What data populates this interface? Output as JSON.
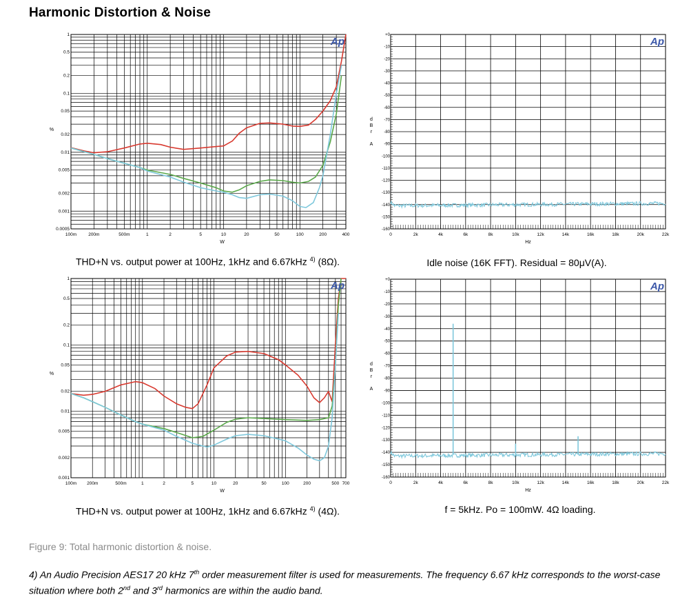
{
  "header": {
    "title": "Harmonic Distortion & Noise"
  },
  "colors": {
    "red": "#d8392f",
    "green": "#5aa84a",
    "cyan": "#7ec8dc",
    "grid": "#000000",
    "logo": "#3b57a8"
  },
  "logo_text": "Ap",
  "charts": {
    "thd8": {
      "caption_main": "THD+N vs. output power at 100Hz, 1kHz and 6.67kHz",
      "caption_sup": "4)",
      "caption_end": " (8Ω).",
      "ylabel": "%",
      "xlabel": "W"
    },
    "idle": {
      "caption": "Idle noise (16K FFT). Residual = 80μV(A).",
      "ylabel": [
        "d",
        "B",
        "r",
        "",
        "A"
      ],
      "xlabel": "Hz"
    },
    "thd4": {
      "caption_main": "THD+N vs. output power at 100Hz, 1kHz and 6.67kHz",
      "caption_sup": "4)",
      "caption_end": " (4Ω).",
      "ylabel": "%",
      "xlabel": "W"
    },
    "fft5k": {
      "caption": "f = 5kHz. Po = 100mW. 4Ω loading.",
      "ylabel": [
        "d",
        "B",
        "r",
        "",
        "A"
      ],
      "xlabel": "Hz"
    }
  },
  "figure_caption": "Figure 9: Total harmonic distortion & noise.",
  "footnote": {
    "p1": "4) An Audio Precision AES17 20 kHz 7",
    "s1": "th",
    "p2": " order measurement filter is used for measurements. The frequency 6.67 kHz corresponds to the worst-case situation where both 2",
    "s2": "nd",
    "p3": " and 3",
    "s3": "rd",
    "p4": " harmonics are within the audio band."
  },
  "chart_data": [
    {
      "id": "thd8",
      "type": "line",
      "x_scale": "log",
      "y_scale": "log",
      "xlim": [
        0.1,
        400
      ],
      "ylim": [
        0.0005,
        1
      ],
      "xlabel": "W",
      "ylabel": "%",
      "x_ticks": [
        {
          "v": 0.1,
          "t": "100m"
        },
        {
          "v": 0.2,
          "t": "200m"
        },
        {
          "v": 0.5,
          "t": "500m"
        },
        {
          "v": 1,
          "t": "1"
        },
        {
          "v": 2,
          "t": "2"
        },
        {
          "v": 5,
          "t": "5"
        },
        {
          "v": 10,
          "t": "10"
        },
        {
          "v": 20,
          "t": "20"
        },
        {
          "v": 50,
          "t": "50"
        },
        {
          "v": 100,
          "t": "100"
        },
        {
          "v": 200,
          "t": "200"
        },
        {
          "v": 400,
          "t": "400"
        }
      ],
      "y_ticks": [
        {
          "v": 1,
          "t": "1"
        },
        {
          "v": 0.5,
          "t": "0.5"
        },
        {
          "v": 0.2,
          "t": "0.2"
        },
        {
          "v": 0.1,
          "t": "0.1"
        },
        {
          "v": 0.05,
          "t": "0.05"
        },
        {
          "v": 0.02,
          "t": "0.02"
        },
        {
          "v": 0.01,
          "t": "0.01"
        },
        {
          "v": 0.005,
          "t": "0.005"
        },
        {
          "v": 0.002,
          "t": "0.002"
        },
        {
          "v": 0.001,
          "t": "0.001"
        },
        {
          "v": 0.0005,
          "t": "0.0005"
        }
      ],
      "series": [
        {
          "color": "red",
          "x": [
            0.1,
            0.15,
            0.2,
            0.3,
            0.5,
            0.8,
            1,
            1.5,
            2,
            3,
            5,
            8,
            10,
            13,
            16,
            20,
            30,
            40,
            60,
            80,
            100,
            130,
            160,
            200,
            250,
            300,
            350,
            400
          ],
          "y": [
            0.012,
            0.0105,
            0.0098,
            0.0102,
            0.0118,
            0.0138,
            0.0142,
            0.0135,
            0.0122,
            0.0112,
            0.0118,
            0.0125,
            0.0128,
            0.0155,
            0.021,
            0.026,
            0.031,
            0.0315,
            0.03,
            0.0278,
            0.0275,
            0.029,
            0.036,
            0.05,
            0.075,
            0.13,
            0.35,
            1.0
          ]
        },
        {
          "color": "green",
          "x": [
            0.1,
            0.15,
            0.2,
            0.3,
            0.5,
            0.8,
            1,
            2,
            3,
            5,
            8,
            10,
            13,
            16,
            20,
            30,
            40,
            60,
            80,
            100,
            130,
            160,
            200,
            250,
            300,
            350
          ],
          "y": [
            0.0118,
            0.0102,
            0.0092,
            0.0078,
            0.0065,
            0.0055,
            0.005,
            0.0042,
            0.0036,
            0.003,
            0.0025,
            0.0022,
            0.0021,
            0.0023,
            0.0027,
            0.0032,
            0.0034,
            0.0033,
            0.0031,
            0.003,
            0.0032,
            0.0038,
            0.006,
            0.015,
            0.045,
            0.2
          ]
        },
        {
          "color": "cyan",
          "x": [
            0.1,
            0.15,
            0.2,
            0.3,
            0.5,
            0.8,
            1,
            2,
            3,
            5,
            8,
            10,
            13,
            16,
            20,
            30,
            40,
            60,
            80,
            100,
            120,
            150,
            180,
            200,
            250,
            300,
            350
          ],
          "y": [
            0.0118,
            0.0102,
            0.0092,
            0.0078,
            0.0065,
            0.0055,
            0.0048,
            0.0038,
            0.0031,
            0.0025,
            0.0022,
            0.0021,
            0.0019,
            0.0017,
            0.00165,
            0.0019,
            0.00195,
            0.0018,
            0.0015,
            0.0012,
            0.00115,
            0.0014,
            0.0025,
            0.004,
            0.02,
            0.1,
            0.3
          ]
        }
      ]
    },
    {
      "id": "idle",
      "type": "line",
      "xlim": [
        0,
        22000
      ],
      "ylim": [
        -160,
        0
      ],
      "xlabel": "Hz",
      "ylabel": "dBr A",
      "x_ticks": [
        {
          "v": 0,
          "t": "0"
        },
        {
          "v": 2000,
          "t": "2k"
        },
        {
          "v": 4000,
          "t": "4k"
        },
        {
          "v": 6000,
          "t": "6k"
        },
        {
          "v": 8000,
          "t": "8k"
        },
        {
          "v": 10000,
          "t": "10k"
        },
        {
          "v": 12000,
          "t": "12k"
        },
        {
          "v": 14000,
          "t": "14k"
        },
        {
          "v": 16000,
          "t": "16k"
        },
        {
          "v": 18000,
          "t": "18k"
        },
        {
          "v": 20000,
          "t": "20k"
        },
        {
          "v": 22000,
          "t": "22k"
        }
      ],
      "y_ticks": [
        {
          "v": 0,
          "t": "+0"
        },
        {
          "v": -10,
          "t": "-10"
        },
        {
          "v": -20,
          "t": "-20"
        },
        {
          "v": -30,
          "t": "-30"
        },
        {
          "v": -40,
          "t": "-40"
        },
        {
          "v": -50,
          "t": "-50"
        },
        {
          "v": -60,
          "t": "-60"
        },
        {
          "v": -70,
          "t": "-70"
        },
        {
          "v": -80,
          "t": "-80"
        },
        {
          "v": -90,
          "t": "-90"
        },
        {
          "v": -100,
          "t": "-100"
        },
        {
          "v": -110,
          "t": "-110"
        },
        {
          "v": -120,
          "t": "-120"
        },
        {
          "v": -130,
          "t": "-130"
        },
        {
          "v": -140,
          "t": "-140"
        },
        {
          "v": -150,
          "t": "-150"
        },
        {
          "v": -160,
          "t": "-160"
        }
      ],
      "noise_floor": -141,
      "noise_floor_end": -139,
      "spikes": []
    },
    {
      "id": "thd4",
      "type": "line",
      "x_scale": "log",
      "y_scale": "log",
      "xlim": [
        0.1,
        700
      ],
      "ylim": [
        0.001,
        1
      ],
      "xlabel": "W",
      "ylabel": "%",
      "x_ticks": [
        {
          "v": 0.1,
          "t": "100m"
        },
        {
          "v": 0.2,
          "t": "200m"
        },
        {
          "v": 0.5,
          "t": "500m"
        },
        {
          "v": 1,
          "t": "1"
        },
        {
          "v": 2,
          "t": "2"
        },
        {
          "v": 5,
          "t": "5"
        },
        {
          "v": 10,
          "t": "10"
        },
        {
          "v": 20,
          "t": "20"
        },
        {
          "v": 50,
          "t": "50"
        },
        {
          "v": 100,
          "t": "100"
        },
        {
          "v": 200,
          "t": "200"
        },
        {
          "v": 500,
          "t": "500"
        },
        {
          "v": 700,
          "t": "700"
        }
      ],
      "y_ticks": [
        {
          "v": 1,
          "t": "1"
        },
        {
          "v": 0.5,
          "t": "0.5"
        },
        {
          "v": 0.2,
          "t": "0.2"
        },
        {
          "v": 0.1,
          "t": "0.1"
        },
        {
          "v": 0.05,
          "t": "0.05"
        },
        {
          "v": 0.02,
          "t": "0.02"
        },
        {
          "v": 0.01,
          "t": "0.01"
        },
        {
          "v": 0.005,
          "t": "0.005"
        },
        {
          "v": 0.002,
          "t": "0.002"
        },
        {
          "v": 0.001,
          "t": "0.001"
        }
      ],
      "series": [
        {
          "color": "red",
          "x": [
            0.1,
            0.15,
            0.2,
            0.3,
            0.5,
            0.8,
            1,
            1.5,
            2,
            3,
            4,
            5,
            6,
            8,
            10,
            15,
            20,
            30,
            50,
            80,
            100,
            150,
            200,
            250,
            300,
            350,
            400,
            450,
            500,
            550,
            600,
            700
          ],
          "y": [
            0.0185,
            0.0175,
            0.018,
            0.02,
            0.025,
            0.028,
            0.027,
            0.022,
            0.017,
            0.013,
            0.0115,
            0.011,
            0.013,
            0.025,
            0.045,
            0.068,
            0.078,
            0.08,
            0.074,
            0.06,
            0.05,
            0.035,
            0.024,
            0.016,
            0.0135,
            0.016,
            0.02,
            0.014,
            0.1,
            0.5,
            1.0,
            1.0
          ]
        },
        {
          "color": "green",
          "x": [
            0.1,
            0.15,
            0.2,
            0.3,
            0.5,
            0.8,
            1,
            2,
            3,
            5,
            7,
            10,
            15,
            20,
            30,
            50,
            100,
            200,
            300,
            400,
            450,
            500,
            550,
            600
          ],
          "y": [
            0.0185,
            0.016,
            0.014,
            0.0115,
            0.0088,
            0.007,
            0.0064,
            0.0055,
            0.0048,
            0.004,
            0.0042,
            0.0052,
            0.0068,
            0.0076,
            0.008,
            0.0078,
            0.0075,
            0.0073,
            0.0075,
            0.008,
            0.012,
            0.05,
            0.4,
            1.0
          ]
        },
        {
          "color": "cyan",
          "x": [
            0.1,
            0.15,
            0.2,
            0.3,
            0.5,
            0.8,
            1,
            2,
            3,
            5,
            8,
            10,
            15,
            20,
            30,
            50,
            100,
            150,
            200,
            250,
            300,
            350,
            400,
            450,
            500,
            550
          ],
          "y": [
            0.0185,
            0.016,
            0.014,
            0.0115,
            0.0088,
            0.007,
            0.0064,
            0.0052,
            0.0042,
            0.0033,
            0.0029,
            0.0031,
            0.0038,
            0.0043,
            0.0045,
            0.0043,
            0.0036,
            0.0028,
            0.0022,
            0.0019,
            0.0018,
            0.002,
            0.003,
            0.008,
            0.05,
            0.3
          ]
        }
      ]
    },
    {
      "id": "fft5k",
      "type": "line",
      "xlim": [
        0,
        22000
      ],
      "ylim": [
        -160,
        0
      ],
      "xlabel": "Hz",
      "ylabel": "dBr A",
      "x_ticks": [
        {
          "v": 0,
          "t": "0"
        },
        {
          "v": 2000,
          "t": "2k"
        },
        {
          "v": 4000,
          "t": "4k"
        },
        {
          "v": 6000,
          "t": "6k"
        },
        {
          "v": 8000,
          "t": "8k"
        },
        {
          "v": 10000,
          "t": "10k"
        },
        {
          "v": 12000,
          "t": "12k"
        },
        {
          "v": 14000,
          "t": "14k"
        },
        {
          "v": 16000,
          "t": "16k"
        },
        {
          "v": 18000,
          "t": "18k"
        },
        {
          "v": 20000,
          "t": "20k"
        },
        {
          "v": 22000,
          "t": "22k"
        }
      ],
      "y_ticks": [
        {
          "v": 0,
          "t": "+0"
        },
        {
          "v": -10,
          "t": "-10"
        },
        {
          "v": -20,
          "t": "-20"
        },
        {
          "v": -30,
          "t": "-30"
        },
        {
          "v": -40,
          "t": "-40"
        },
        {
          "v": -50,
          "t": "-50"
        },
        {
          "v": -60,
          "t": "-60"
        },
        {
          "v": -70,
          "t": "-70"
        },
        {
          "v": -80,
          "t": "-80"
        },
        {
          "v": -90,
          "t": "-90"
        },
        {
          "v": -100,
          "t": "-100"
        },
        {
          "v": -110,
          "t": "-110"
        },
        {
          "v": -120,
          "t": "-120"
        },
        {
          "v": -130,
          "t": "-130"
        },
        {
          "v": -140,
          "t": "-140"
        },
        {
          "v": -150,
          "t": "-150"
        },
        {
          "v": -160,
          "t": "-160"
        }
      ],
      "noise_floor": -143,
      "noise_floor_end": -141,
      "spikes": [
        {
          "x": 5000,
          "y": -36
        },
        {
          "x": 10000,
          "y": -133
        },
        {
          "x": 15000,
          "y": -127
        }
      ]
    }
  ]
}
